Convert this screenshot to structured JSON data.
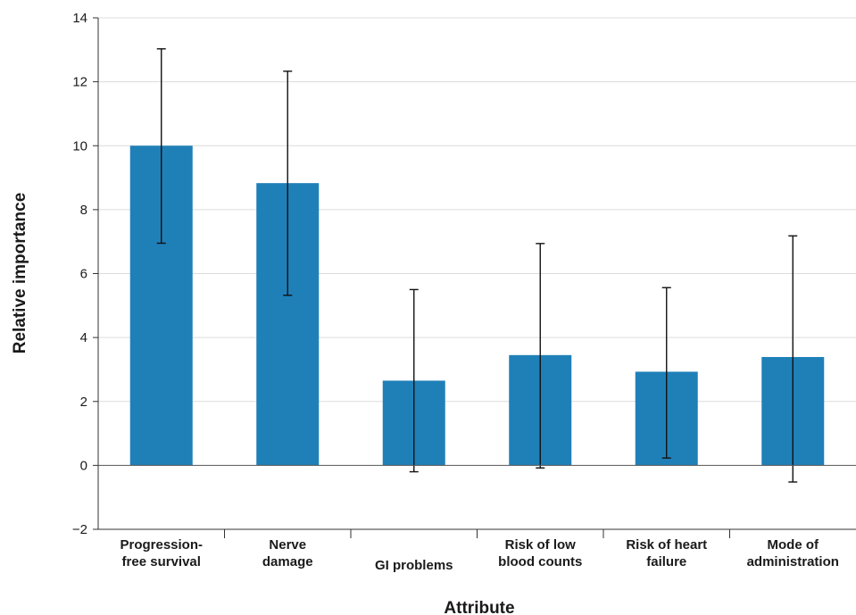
{
  "chart_data": {
    "type": "bar",
    "categories": [
      [
        "Progression-",
        "free survival"
      ],
      [
        "Nerve",
        "damage"
      ],
      [
        "GI problems"
      ],
      [
        "Risk of low",
        "blood counts"
      ],
      [
        "Risk of heart",
        "failure"
      ],
      [
        "Mode of",
        "administration"
      ]
    ],
    "values": [
      10.0,
      8.83,
      2.65,
      3.45,
      2.93,
      3.39
    ],
    "error_low": [
      6.95,
      5.32,
      -0.2,
      -0.08,
      0.23,
      -0.52
    ],
    "error_high": [
      13.03,
      12.33,
      5.5,
      6.94,
      5.56,
      7.18
    ],
    "xlabel": "Attribute",
    "ylabel": "Relative importance",
    "ylim": [
      -2,
      14
    ],
    "yticks": [
      -2,
      0,
      2,
      4,
      6,
      8,
      10,
      12,
      14
    ],
    "ytick_labels": [
      "−2",
      "0",
      "2",
      "4",
      "6",
      "8",
      "10",
      "12",
      "14"
    ],
    "grid": true,
    "bar_color": "#1f80b8"
  }
}
